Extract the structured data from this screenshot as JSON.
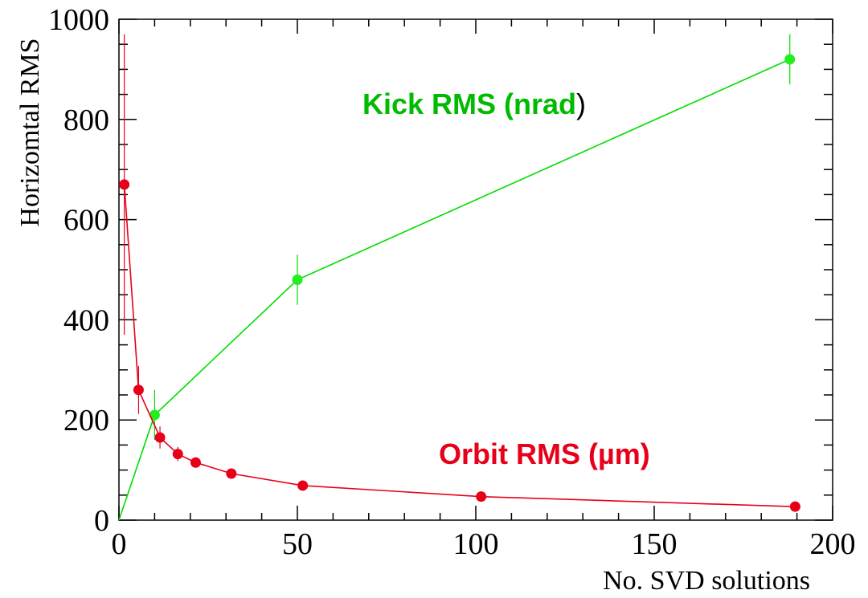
{
  "chart_data": {
    "type": "line",
    "xlabel": "No. SVD solutions",
    "ylabel": "Horizomtal RMS",
    "xlim": [
      0,
      200
    ],
    "ylim": [
      0,
      1000
    ],
    "x_ticks": [
      0,
      50,
      100,
      150,
      200
    ],
    "y_ticks": [
      0,
      200,
      400,
      600,
      800,
      1000
    ],
    "x_tick_labels": [
      "0",
      "50",
      "100",
      "150",
      "200"
    ],
    "y_tick_labels": [
      "0",
      "200",
      "400",
      "600",
      "800",
      "1000"
    ],
    "grid": false,
    "series": [
      {
        "name": "Kick RMS (nrad)",
        "color": "#00dd00",
        "marker_color": "#22ee22",
        "points": [
          {
            "x": 0,
            "y": 0,
            "err": 0,
            "marker": false
          },
          {
            "x": 10,
            "y": 210,
            "err": 50,
            "marker": true
          },
          {
            "x": 50,
            "y": 480,
            "err": 50,
            "marker": true
          },
          {
            "x": 188,
            "y": 920,
            "err": 50,
            "marker": true
          }
        ]
      },
      {
        "name": "Orbit RMS (µm)",
        "color": "#e8001a",
        "marker_color": "#e8001a",
        "points": [
          {
            "x": 1.5,
            "y": 670,
            "err": 300,
            "marker": true
          },
          {
            "x": 5.5,
            "y": 260,
            "err": 48,
            "marker": true
          },
          {
            "x": 11.5,
            "y": 165,
            "err": 22,
            "marker": true
          },
          {
            "x": 16.5,
            "y": 132,
            "err": 14,
            "marker": true
          },
          {
            "x": 21.5,
            "y": 115,
            "err": 8,
            "marker": true
          },
          {
            "x": 31.5,
            "y": 93,
            "err": 5,
            "marker": true
          },
          {
            "x": 51.5,
            "y": 69,
            "err": 4,
            "marker": true
          },
          {
            "x": 101.5,
            "y": 47,
            "err": 3,
            "marker": true
          },
          {
            "x": 189.5,
            "y": 27,
            "err": 2,
            "marker": true
          }
        ]
      }
    ],
    "annotations": {
      "kick": {
        "label": "Kick RMS (nrad",
        "closing": ")",
        "label_color": "#00bb00"
      },
      "orbit": {
        "label": "Orbit RMS (µm)",
        "label_color": "#e8001a"
      }
    }
  }
}
